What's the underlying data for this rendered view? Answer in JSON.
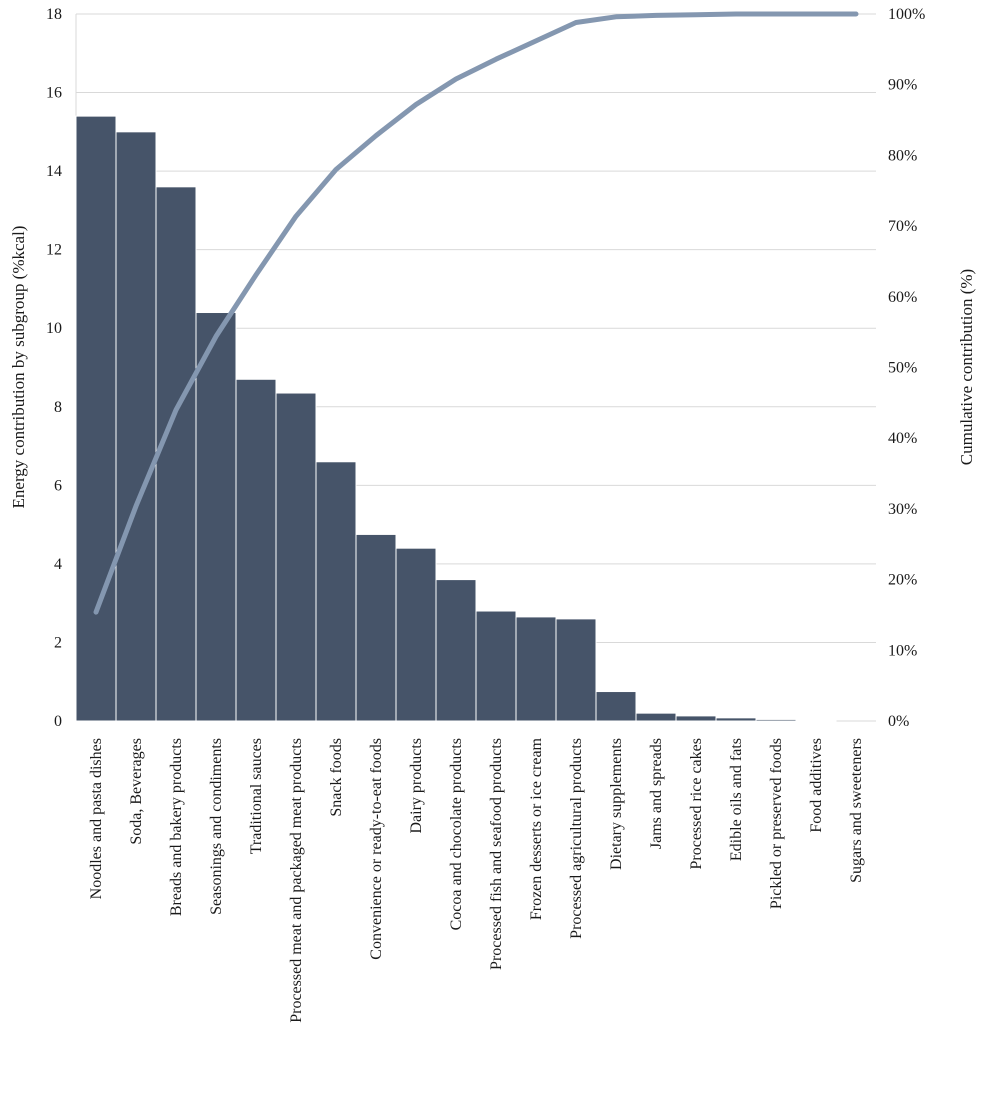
{
  "chart_data": {
    "type": "bar",
    "categories": [
      "Noodles and pasta dishes",
      "Soda, Beverages",
      "Breads and bakery products",
      "Seasonings and condiments",
      "Traditional sauces",
      "Processed meat and packaged meat products",
      "Snack foods",
      "Convenience or ready-to-eat foods",
      "Dairy products",
      "Cocoa and chocolate products",
      "Processed fish and seafood products",
      "Frozen desserts or ice cream",
      "Processed agricultural products",
      "Dietary supplements",
      "Jams and spreads",
      "Processed rice cakes",
      "Edible oils and fats",
      "Pickled or preserved foods",
      "Food additives",
      "Sugars and sweeteners"
    ],
    "series": [
      {
        "axis": "left",
        "type": "bar",
        "values": [
          15.4,
          15.0,
          13.6,
          10.4,
          8.7,
          8.35,
          6.6,
          4.75,
          4.4,
          3.6,
          2.8,
          2.65,
          2.6,
          0.75,
          0.2,
          0.13,
          0.08,
          0.04,
          0.01,
          0.0
        ]
      },
      {
        "axis": "right",
        "type": "line",
        "values": [
          15.4,
          30.4,
          44.0,
          54.4,
          63.1,
          71.4,
          78.0,
          82.8,
          87.2,
          90.8,
          93.6,
          96.2,
          98.8,
          99.6,
          99.8,
          99.9,
          100.0,
          100.0,
          100.0,
          100.0
        ]
      }
    ],
    "ylabel": "Energy contribution by subgroup (%kcal)",
    "y2label": "Cumulative contribution (%)",
    "ylim": [
      0,
      18
    ],
    "y2lim": [
      0,
      100
    ],
    "yticks": [
      "0",
      "2",
      "4",
      "6",
      "8",
      "10",
      "12",
      "14",
      "16",
      "18"
    ],
    "y2ticks": [
      "0%",
      "10%",
      "20%",
      "30%",
      "40%",
      "50%",
      "60%",
      "70%",
      "80%",
      "90%",
      "100%"
    ],
    "grid": true,
    "legend": "none",
    "colors": {
      "bar": "#465469",
      "line": "#8497b0",
      "grid": "#d9d9d9"
    }
  }
}
